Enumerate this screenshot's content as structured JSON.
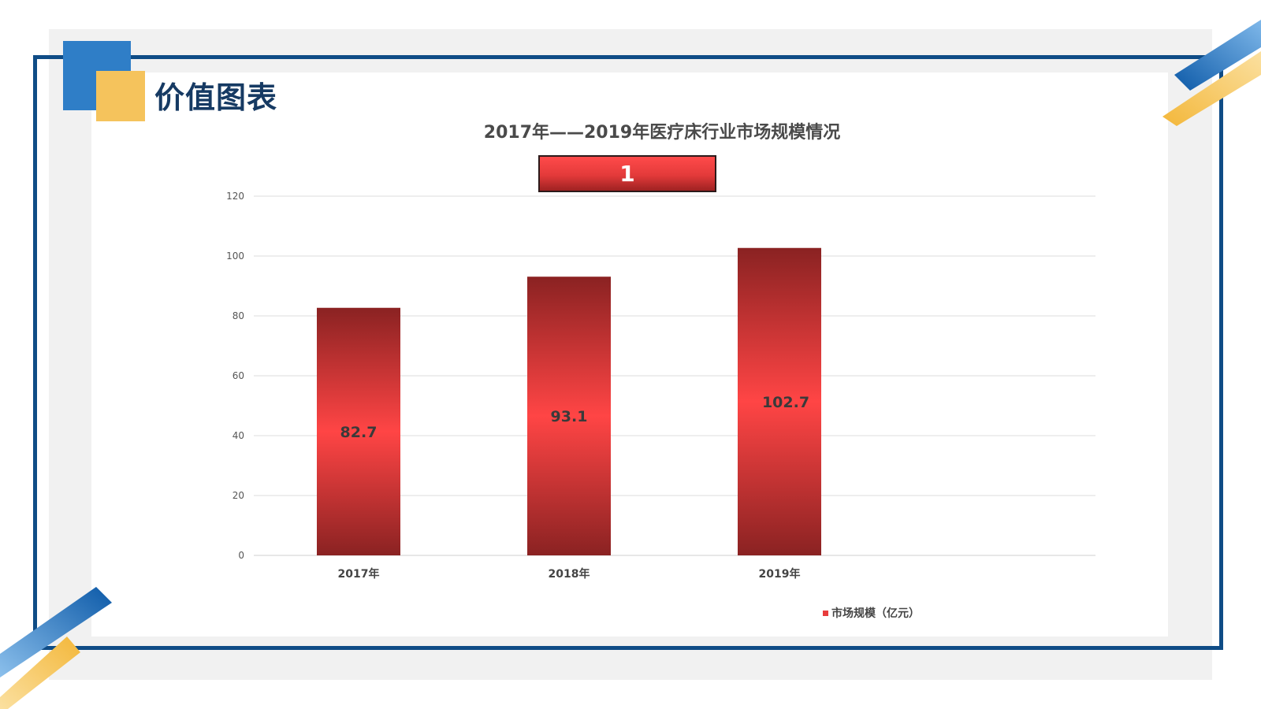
{
  "page": {
    "title": "价值图表",
    "colors": {
      "frame": "#0f4c86",
      "accent_blue": "#2f7ec7",
      "accent_yellow": "#f5c35c",
      "bar_light": "#ff4545",
      "bar_dark": "#8a2222"
    }
  },
  "chart_data": {
    "type": "bar",
    "title": "2017年——2019年医疗床行业市场规模情况",
    "categories": [
      "2017年",
      "2018年",
      "2019年"
    ],
    "series": [
      {
        "name": "市场规模（亿元）",
        "values": [
          82.7,
          93.1,
          102.7
        ]
      }
    ],
    "data_labels": [
      "82.7",
      "93.1",
      "102.7"
    ],
    "ylim": [
      0,
      120
    ],
    "yticks": [
      "0",
      "20",
      "40",
      "60",
      "80",
      "100",
      "120"
    ],
    "grid": true,
    "legend_position": "bottom-right",
    "badge": "1"
  }
}
